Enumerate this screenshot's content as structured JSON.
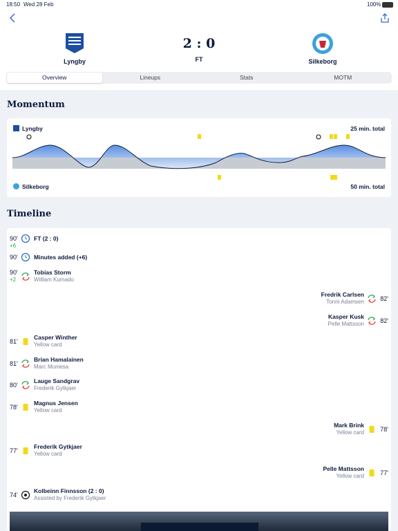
{
  "status_bar": {
    "time": "18:50",
    "date": "Wed 28 Feb",
    "battery": "100%"
  },
  "match": {
    "home": "Lyngby",
    "away": "Silkeborg",
    "score": "2 : 0",
    "status": "FT"
  },
  "tabs": [
    "Overview",
    "Lineups",
    "Stats",
    "MOTM"
  ],
  "active_tab": 0,
  "momentum": {
    "title": "Momentum",
    "home": "Lyngby",
    "home_total": "25 min. total",
    "away": "Silkeborg",
    "away_total": "50 min. total"
  },
  "timeline": {
    "title": "Timeline",
    "events": [
      {
        "minute": "90'",
        "added": "+6",
        "side": "home",
        "icon": "clock",
        "primary": "FT (2 : 0)"
      },
      {
        "minute": "90'",
        "side": "home",
        "icon": "clock",
        "primary": "Minutes added (+6)"
      },
      {
        "minute": "90'",
        "added": "+2",
        "side": "home",
        "icon": "sub",
        "primary": "Tobias Storm",
        "secondary": "William Kumado"
      },
      {
        "minute": "82'",
        "side": "away",
        "icon": "sub",
        "primary": "Fredrik Carlsen",
        "secondary": "Tonni Adamsen"
      },
      {
        "minute": "82'",
        "side": "away",
        "icon": "sub",
        "primary": "Kasper Kusk",
        "secondary": "Pelle Mattsson"
      },
      {
        "minute": "81'",
        "side": "home",
        "icon": "yellow",
        "primary": "Casper Winther",
        "secondary": "Yellow card"
      },
      {
        "minute": "81'",
        "side": "home",
        "icon": "sub",
        "primary": "Brian Hamalainen",
        "secondary": "Marc Muniesa"
      },
      {
        "minute": "80'",
        "side": "home",
        "icon": "sub",
        "primary": "Lauge Sandgrav",
        "secondary": "Frederik Gytkjaer"
      },
      {
        "minute": "78'",
        "side": "home",
        "icon": "yellow",
        "primary": "Magnus Jensen",
        "secondary": "Yellow card"
      },
      {
        "minute": "78'",
        "side": "away",
        "icon": "yellow",
        "primary": "Mark Brink",
        "secondary": "Yellow card"
      },
      {
        "minute": "77'",
        "side": "home",
        "icon": "yellow",
        "primary": "Frederik Gytkjaer",
        "secondary": "Yellow card"
      },
      {
        "minute": "77'",
        "side": "away",
        "icon": "yellow",
        "primary": "Pelle Mattsson",
        "secondary": "Yellow card"
      },
      {
        "minute": "74'",
        "side": "home",
        "icon": "goal",
        "primary": "Kolbeinn Finnsson (2 : 0)",
        "secondary": "Assisted by Frederik Gytkjaer"
      }
    ]
  }
}
